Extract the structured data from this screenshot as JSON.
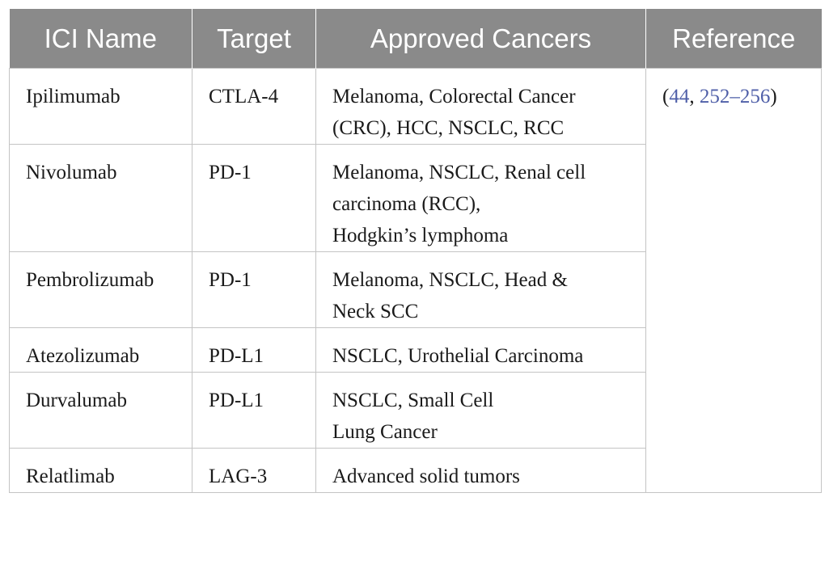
{
  "headers": [
    "ICI Name",
    "Target",
    "Approved Cancers",
    "Reference"
  ],
  "rows": [
    {
      "name": "Ipilimumab",
      "target": "CTLA-4",
      "cancers": [
        "Melanoma, Colorectal Cancer",
        "(CRC), HCC, NSCLC, RCC"
      ]
    },
    {
      "name": "Nivolumab",
      "target": "PD-1",
      "cancers": [
        "Melanoma, NSCLC, Renal cell",
        "carcinoma (RCC),",
        "Hodgkin’s lymphoma"
      ]
    },
    {
      "name": "Pembrolizumab",
      "target": "PD-1",
      "cancers": [
        "Melanoma, NSCLC, Head &",
        "Neck SCC"
      ]
    },
    {
      "name": "Atezolizumab",
      "target": "PD-L1",
      "cancers": [
        "NSCLC, Urothelial Carcinoma"
      ]
    },
    {
      "name": "Durvalumab",
      "target": "PD-L1",
      "cancers": [
        "NSCLC, Small Cell",
        "Lung Cancer"
      ]
    },
    {
      "name": "Relatlimab",
      "target": "LAG-3",
      "cancers": [
        "Advanced solid tumors"
      ]
    }
  ],
  "reference": {
    "open": "(",
    "ref1": "44",
    "sep": ", ",
    "ref2": "252",
    "dash": "–",
    "ref3": "256",
    "close": ")"
  },
  "colors": {
    "header_bg": "#8a8a8a",
    "link": "#4f5fa8",
    "border": "#c4c4c4"
  }
}
